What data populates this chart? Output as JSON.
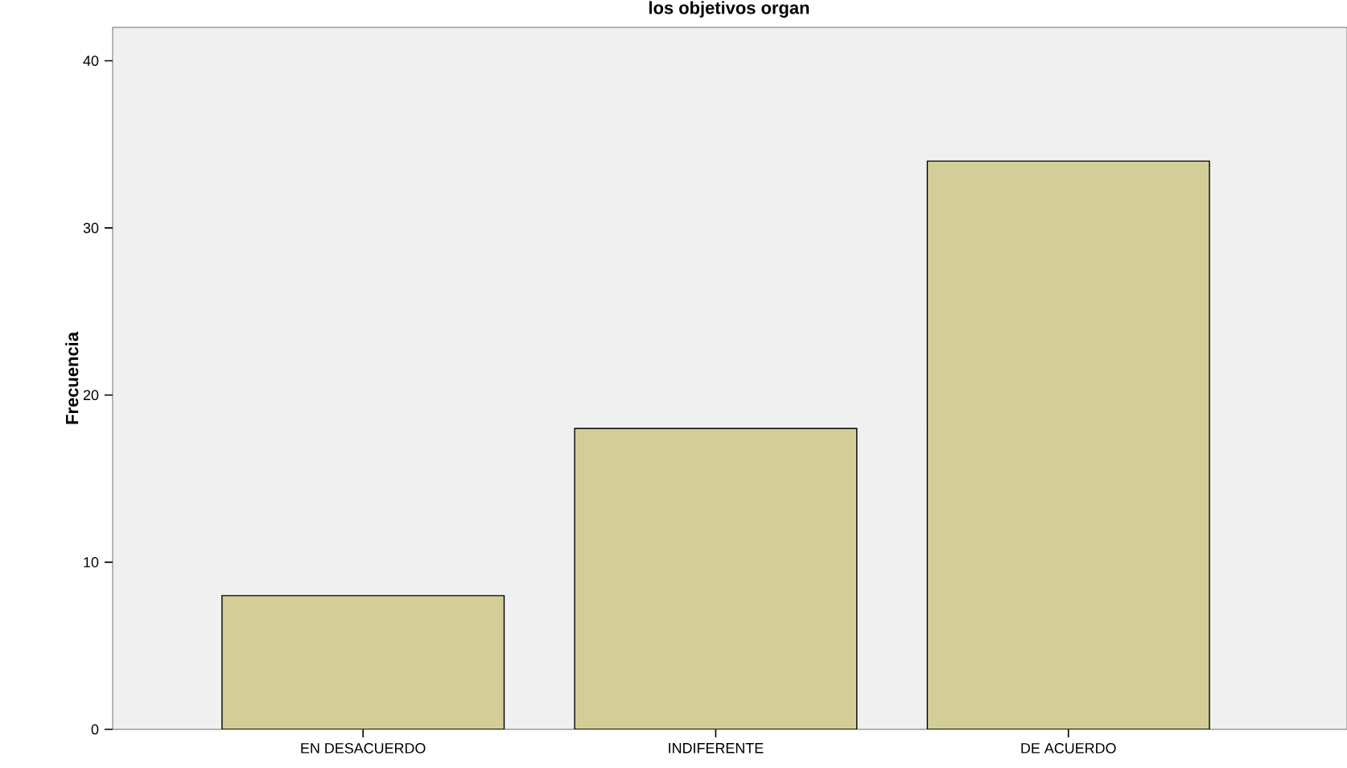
{
  "chart_data": {
    "type": "bar",
    "title": "los objetivos organ",
    "ylabel": "Frecuencia",
    "categories": [
      "EN DESACUERDO",
      "INDIFERENTE",
      "DE ACUERDO"
    ],
    "values": [
      8,
      18,
      34
    ],
    "color": "#d3ce97",
    "ylim": [
      0,
      42
    ],
    "yticks": [
      0,
      10,
      20,
      30,
      40
    ],
    "grid": false
  }
}
